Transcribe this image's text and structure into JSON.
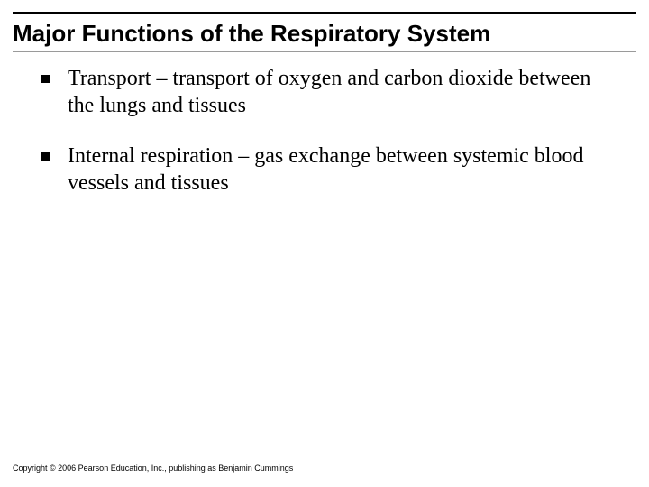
{
  "slide": {
    "title": "Major Functions of the Respiratory System",
    "bullets": [
      "Transport – transport of oxygen and carbon dioxide between the lungs and tissues",
      "Internal respiration – gas exchange between systemic blood vessels and tissues"
    ],
    "footer": "Copyright © 2006 Pearson Education, Inc., publishing as Benjamin Cummings"
  },
  "style": {
    "title_fontsize": 26,
    "title_fontweight": "bold",
    "title_color": "#000000",
    "body_fontsize": 24,
    "body_fontfamily": "Times New Roman",
    "body_color": "#000000",
    "footer_fontsize": 9,
    "footer_color": "#000000",
    "top_rule_color": "#000000",
    "underline_color": "#9a9a9a",
    "bullet_marker_color": "#000000",
    "background_color": "#ffffff"
  }
}
